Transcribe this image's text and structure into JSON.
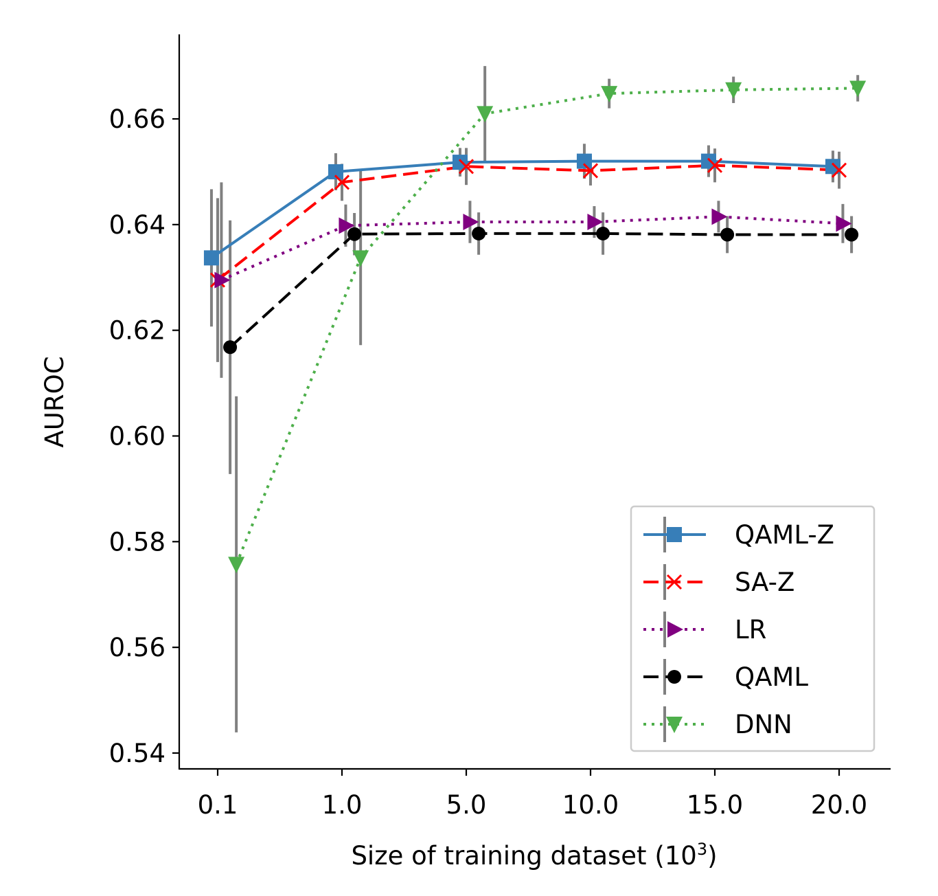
{
  "chart_data": {
    "type": "line",
    "title": "",
    "xlabel_prefix": "Size of training dataset (10",
    "xlabel_exponent": "3",
    "xlabel_suffix": ")",
    "ylabel": "AUROC",
    "categories": [
      "0.1",
      "1.0",
      "5.0",
      "10.0",
      "15.0",
      "20.0"
    ],
    "ylim": [
      0.537,
      0.676
    ],
    "yticks": [
      "0.54",
      "0.56",
      "0.58",
      "0.60",
      "0.62",
      "0.64",
      "0.66"
    ],
    "ytick_values": [
      0.54,
      0.56,
      0.58,
      0.6,
      0.62,
      0.64,
      0.66
    ],
    "grid": false,
    "legend_position": "lower-right",
    "series": [
      {
        "name": "QAML-Z",
        "color": "#377eb8",
        "marker": "square",
        "linestyle": "solid",
        "offset": -0.05,
        "values": [
          0.6337,
          0.65,
          0.6518,
          0.652,
          0.652,
          0.651
        ],
        "errors": [
          0.013,
          0.0035,
          0.0027,
          0.0033,
          0.003,
          0.003
        ]
      },
      {
        "name": "SA-Z",
        "color": "#ff0000",
        "marker": "x",
        "linestyle": "dashed",
        "offset": 0.0,
        "values": [
          0.6295,
          0.648,
          0.651,
          0.6502,
          0.6512,
          0.6503
        ],
        "errors": [
          0.0155,
          0.0035,
          0.0035,
          0.0028,
          0.0032,
          0.0035
        ]
      },
      {
        "name": "LR",
        "color": "#800080",
        "marker": "triangle-right",
        "linestyle": "dotted",
        "offset": 0.03,
        "values": [
          0.6295,
          0.6398,
          0.6405,
          0.6405,
          0.6415,
          0.6402
        ],
        "errors": [
          0.0185,
          0.004,
          0.004,
          0.003,
          0.003,
          0.0037
        ]
      },
      {
        "name": "QAML",
        "color": "#000000",
        "marker": "circle",
        "linestyle": "dashed",
        "offset": 0.1,
        "values": [
          0.6168,
          0.6382,
          0.6383,
          0.6383,
          0.6381,
          0.6381
        ],
        "errors": [
          0.024,
          0.004,
          0.004,
          0.004,
          0.0035,
          0.0035
        ]
      },
      {
        "name": "DNN",
        "color": "#4daf4a",
        "marker": "triangle-down",
        "linestyle": "dotted",
        "offset": 0.15,
        "values": [
          0.5757,
          0.6337,
          0.661,
          0.6648,
          0.6655,
          0.6658
        ],
        "errors": [
          0.0318,
          0.0165,
          0.009,
          0.0028,
          0.0025,
          0.0025
        ]
      }
    ]
  }
}
